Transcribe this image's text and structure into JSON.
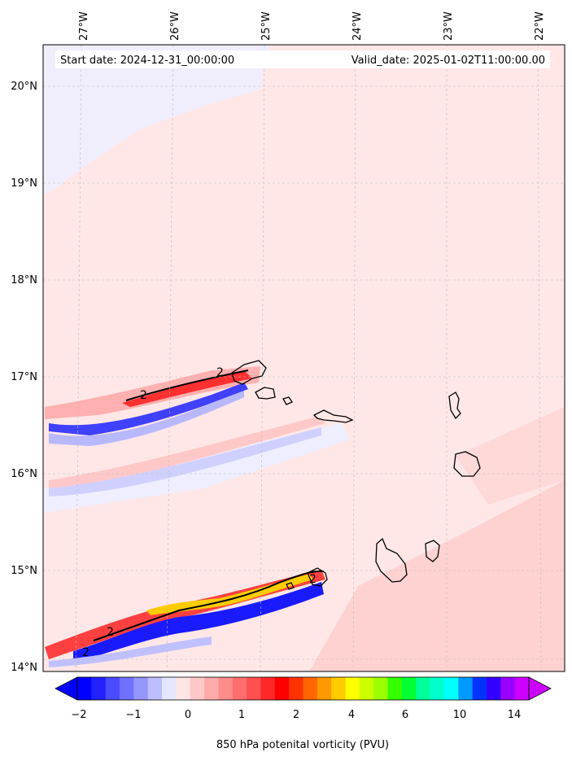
{
  "header": {
    "start_date": "Start date: 2024-12-31_00:00:00",
    "valid_date": "Valid_date: 2025-01-02T11:00:00.00"
  },
  "axes": {
    "lon_labels": [
      "27°W",
      "26°W",
      "25°W",
      "24°W",
      "23°W",
      "22°W"
    ],
    "lat_labels": [
      "20°N",
      "19°N",
      "18°N",
      "17°N",
      "16°N",
      "15°N",
      "14°N"
    ]
  },
  "contour_labels": [
    "2",
    "2",
    "2",
    "2",
    "2"
  ],
  "colorbar": {
    "title": "850 hPa potenital vorticity (PVU)",
    "tick_labels": [
      "−2",
      "−1",
      "0",
      "1",
      "2",
      "4",
      "6",
      "10",
      "14"
    ],
    "colors": [
      "#0000ff",
      "#2222ff",
      "#4a4aff",
      "#7070ff",
      "#9696ff",
      "#bdbdff",
      "#e6e6ff",
      "#ffe6e6",
      "#ffc8c8",
      "#ffaaaa",
      "#ff8c8c",
      "#ff6e6e",
      "#ff5050",
      "#ff2828",
      "#ff0000",
      "#ff3300",
      "#ff6600",
      "#ff9900",
      "#ffcc00",
      "#ffff00",
      "#ccff00",
      "#99ff00",
      "#33ff00",
      "#00ff33",
      "#00ff99",
      "#00ffcc",
      "#00ffff",
      "#0099ff",
      "#0033ff",
      "#3300ff",
      "#9900ff",
      "#cc00ff"
    ]
  }
}
